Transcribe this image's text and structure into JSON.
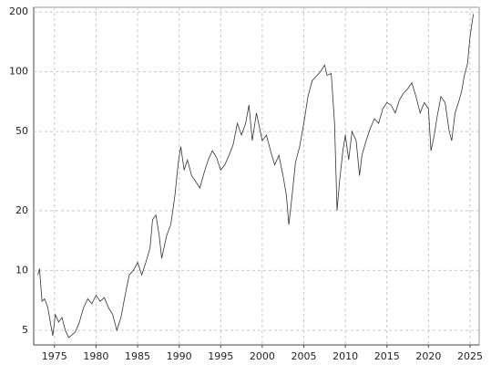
{
  "chart_data": {
    "type": "line",
    "log_y": true,
    "grid": true,
    "x": [
      1973.0,
      1973.2,
      1973.5,
      1973.8,
      1974.2,
      1974.6,
      1974.8,
      1975.1,
      1975.5,
      1975.9,
      1976.3,
      1976.7,
      1977.0,
      1977.5,
      1978.0,
      1978.5,
      1979.0,
      1979.5,
      1980.0,
      1980.5,
      1981.0,
      1981.5,
      1982.0,
      1982.5,
      1983.0,
      1983.5,
      1984.0,
      1984.5,
      1985.0,
      1985.5,
      1986.0,
      1986.5,
      1986.8,
      1987.2,
      1987.6,
      1987.9,
      1988.5,
      1989.0,
      1989.5,
      1989.9,
      1990.2,
      1990.6,
      1991.0,
      1991.5,
      1992.0,
      1992.5,
      1993.0,
      1993.5,
      1994.0,
      1994.5,
      1995.0,
      1995.5,
      1996.0,
      1996.5,
      1997.0,
      1997.5,
      1998.0,
      1998.4,
      1998.8,
      1999.3,
      2000.0,
      2000.5,
      2001.0,
      2001.5,
      2002.0,
      2002.5,
      2002.9,
      2003.2,
      2003.5,
      2004.0,
      2004.5,
      2005.0,
      2005.5,
      2006.0,
      2006.5,
      2007.0,
      2007.5,
      2007.8,
      2008.3,
      2008.7,
      2009.0,
      2009.3,
      2009.7,
      2010.0,
      2010.4,
      2010.8,
      2011.3,
      2011.7,
      2012.0,
      2012.5,
      2013.0,
      2013.5,
      2014.0,
      2014.5,
      2015.0,
      2015.5,
      2016.0,
      2016.5,
      2017.0,
      2017.5,
      2018.0,
      2018.5,
      2019.0,
      2019.5,
      2020.0,
      2020.3,
      2020.7,
      2021.0,
      2021.5,
      2022.0,
      2022.5,
      2022.8,
      2023.2,
      2023.7,
      2024.0,
      2024.3,
      2024.7,
      2025.0,
      2025.4
    ],
    "series": [
      {
        "color": "#333333",
        "values": [
          9.5,
          10.2,
          7.0,
          7.2,
          6.5,
          5.2,
          4.7,
          6.0,
          5.5,
          5.8,
          5.0,
          4.6,
          4.7,
          4.9,
          5.5,
          6.5,
          7.2,
          6.8,
          7.5,
          7.0,
          7.3,
          6.5,
          6.0,
          5.0,
          5.8,
          7.5,
          9.5,
          10.0,
          11.0,
          9.5,
          11.0,
          13.0,
          18,
          19,
          15,
          11.5,
          15,
          17,
          24,
          35,
          42,
          32,
          36,
          30,
          28,
          26,
          31,
          36,
          40,
          37,
          32,
          34,
          38,
          43,
          55,
          48,
          55,
          68,
          45,
          62,
          45,
          48,
          40,
          34,
          38,
          30,
          24,
          17,
          22,
          35,
          42,
          55,
          75,
          90,
          95,
          100,
          108,
          96,
          98,
          55,
          20,
          28,
          40,
          48,
          36,
          50,
          45,
          30,
          38,
          45,
          52,
          58,
          55,
          65,
          70,
          68,
          62,
          72,
          78,
          82,
          88,
          75,
          62,
          70,
          65,
          40,
          48,
          58,
          75,
          70,
          50,
          45,
          62,
          72,
          80,
          95,
          110,
          150,
          195
        ]
      }
    ],
    "xlim": [
      1972.5,
      2026.1
    ],
    "xticks": [
      1975,
      1980,
      1985,
      1990,
      1995,
      2000,
      2005,
      2010,
      2015,
      2020,
      2025
    ],
    "ylim": [
      4.22,
      211
    ],
    "yticks": [
      5,
      10,
      20,
      50,
      100,
      200
    ]
  }
}
